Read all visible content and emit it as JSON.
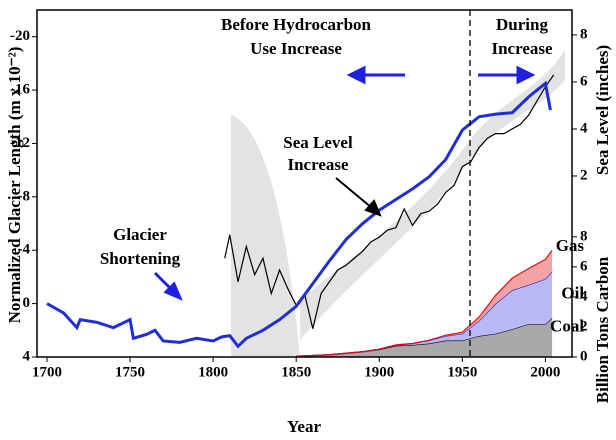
{
  "chart_data": {
    "type": "line",
    "xlabel": "Year",
    "ylabel": "Normalized Glacier Length (m x 10⁻²)",
    "y2label": "Sea Level (inches)",
    "y3label": "Billion Tons Carbon",
    "annotations": [
      "Before Hydrocarbon",
      "Use Increase",
      "During",
      "Increase",
      "Sea Level",
      "Increase",
      "Glacier",
      "Shortening"
    ],
    "xlim": [
      1694,
      2016
    ],
    "xticks": [
      1700,
      1750,
      1800,
      1850,
      1900,
      1950,
      2000
    ],
    "ylim": [
      4,
      -22
    ],
    "yticks": [
      -20,
      -16,
      -12,
      -8,
      -4,
      0,
      4
    ],
    "y2lim": [
      -5.7,
      9.06
    ],
    "y2ticks": [
      2,
      4,
      6,
      8
    ],
    "y3lim": [
      0,
      23.1
    ],
    "y3ticks": [
      0,
      2,
      4,
      6,
      8
    ],
    "series": [
      {
        "color": "#1f2fd6",
        "axis": "y",
        "x": [
          1700,
          1710,
          1718,
          1720,
          1730,
          1740,
          1745,
          1750,
          1752,
          1760,
          1765,
          1770,
          1780,
          1790,
          1800,
          1805,
          1810,
          1815,
          1820,
          1830,
          1840,
          1850,
          1860,
          1870,
          1880,
          1890,
          1900,
          1910,
          1920,
          1930,
          1940,
          1950,
          1960,
          1970,
          1980,
          1990,
          2000,
          2003
        ],
        "values": [
          0,
          0.7,
          1.8,
          1.2,
          1.4,
          1.8,
          1.5,
          1.2,
          2.6,
          2.3,
          2.0,
          2.8,
          2.9,
          2.6,
          2.8,
          2.5,
          2.4,
          3.2,
          2.6,
          2.0,
          1.2,
          0.2,
          -1.5,
          -3.2,
          -4.8,
          -6.0,
          -7.0,
          -7.8,
          -8.6,
          -9.5,
          -10.8,
          -13.0,
          -14.0,
          -14.2,
          -14.3,
          -15.5,
          -16.5,
          -14.5
        ]
      },
      {
        "color": "#000000",
        "axis": "y2",
        "x": [
          1807,
          1810,
          1815,
          1820,
          1825,
          1830,
          1835,
          1840,
          1845,
          1850,
          1855,
          1860,
          1865,
          1870,
          1875,
          1880,
          1885,
          1890,
          1895,
          1900,
          1905,
          1910,
          1915,
          1920,
          1925,
          1930,
          1935,
          1940,
          1945,
          1950,
          1955,
          1960,
          1965,
          1970,
          1975,
          1980,
          1985,
          1990,
          1995,
          2000,
          2005
        ],
        "values": [
          -1.5,
          -0.5,
          -2.5,
          -1.0,
          -2.2,
          -1.5,
          -3.0,
          -2.0,
          -2.8,
          -3.5,
          -3.0,
          -4.5,
          -3.0,
          -2.5,
          -2.0,
          -1.8,
          -1.5,
          -1.2,
          -0.8,
          -0.6,
          -0.3,
          -0.2,
          0.6,
          -0.1,
          0.4,
          0.5,
          0.8,
          1.3,
          1.6,
          2.4,
          2.6,
          3.2,
          3.6,
          3.8,
          3.8,
          4.0,
          4.2,
          4.6,
          5.2,
          5.8,
          6.3
        ]
      }
    ],
    "stack_x": [
      1850,
      1860,
      1870,
      1880,
      1890,
      1900,
      1910,
      1920,
      1930,
      1940,
      1950,
      1960,
      1970,
      1980,
      1990,
      2000,
      2004
    ],
    "stack": [
      {
        "name": "Coal",
        "color": "#a9a9a9",
        "line": "#000000",
        "values": [
          0.05,
          0.1,
          0.15,
          0.25,
          0.35,
          0.5,
          0.75,
          0.8,
          0.9,
          1.1,
          1.1,
          1.4,
          1.55,
          1.85,
          2.2,
          2.2,
          2.6
        ]
      },
      {
        "name": "Oil",
        "color": "#b9b9f7",
        "line": "#2020e0",
        "values": [
          0,
          0,
          0,
          0,
          0,
          0.02,
          0.05,
          0.1,
          0.2,
          0.3,
          0.45,
          1.0,
          2.0,
          2.6,
          2.6,
          3.0,
          3.1
        ]
      },
      {
        "name": "Gas",
        "color": "#f3a3a3",
        "line": "#e01010",
        "values": [
          0,
          0,
          0,
          0,
          0,
          0,
          0,
          0,
          0.02,
          0.05,
          0.1,
          0.25,
          0.55,
          0.8,
          1.1,
          1.3,
          1.4
        ]
      }
    ]
  }
}
